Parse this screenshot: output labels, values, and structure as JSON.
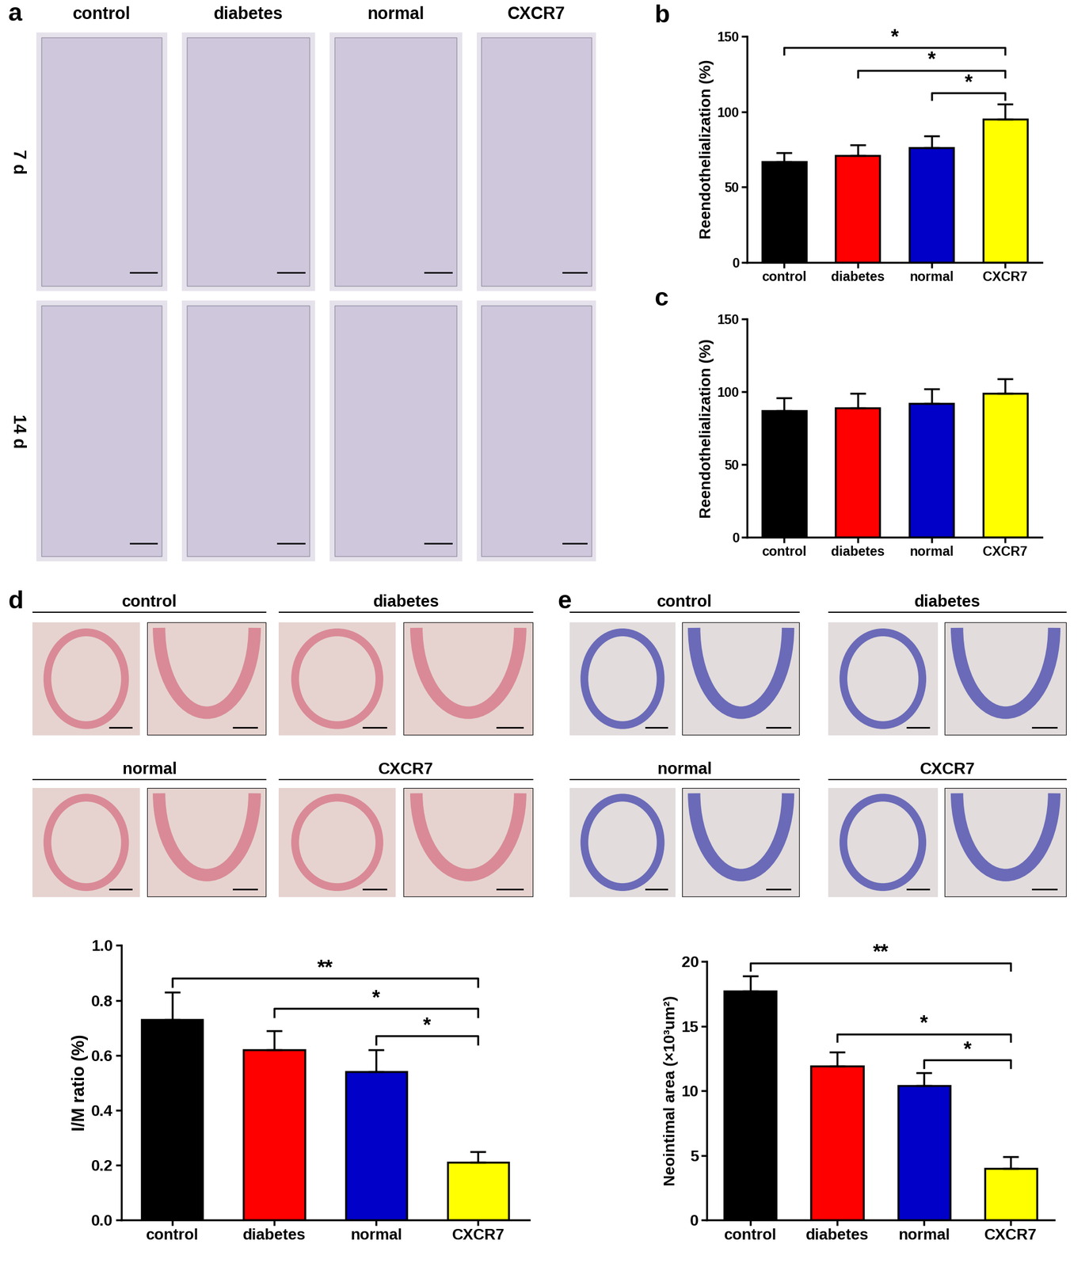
{
  "image_panels": [
    {
      "panel": "a",
      "columns": [
        "control",
        "diabetes",
        "normal",
        "CXCR7"
      ],
      "rows": [
        "7 d",
        "14 d"
      ]
    },
    {
      "panel": "d",
      "groups": [
        "control",
        "diabetes",
        "normal",
        "CXCR7"
      ]
    },
    {
      "panel": "e",
      "groups": [
        "control",
        "diabetes",
        "normal",
        "CXCR7"
      ]
    }
  ],
  "chart_data": [
    {
      "panel": "b",
      "type": "bar",
      "ylabel": "Reendothelialization (%)",
      "categories": [
        "control",
        "diabetes",
        "normal",
        "CXCR7"
      ],
      "values": [
        67,
        71,
        76,
        95
      ],
      "errors": [
        6,
        7,
        8,
        10
      ],
      "colors": [
        "#000000",
        "#ff0000",
        "#0000c8",
        "#ffff00"
      ],
      "ylim": [
        0,
        150
      ],
      "yticks": [
        0,
        50,
        100,
        150
      ],
      "annotations": [
        {
          "between": [
            "control",
            "CXCR7"
          ],
          "text": "*"
        },
        {
          "between": [
            "diabetes",
            "CXCR7"
          ],
          "text": "*"
        },
        {
          "between": [
            "normal",
            "CXCR7"
          ],
          "text": "*"
        }
      ]
    },
    {
      "panel": "c",
      "type": "bar",
      "ylabel": "Reendothelialization (%)",
      "categories": [
        "control",
        "diabetes",
        "normal",
        "CXCR7"
      ],
      "values": [
        87,
        89,
        92,
        99
      ],
      "errors": [
        9,
        10,
        10,
        10
      ],
      "colors": [
        "#000000",
        "#ff0000",
        "#0000c8",
        "#ffff00"
      ],
      "ylim": [
        0,
        150
      ],
      "yticks": [
        0,
        50,
        100,
        150
      ],
      "annotations": []
    },
    {
      "panel": "d",
      "type": "bar",
      "ylabel": "I/M ratio (%)",
      "categories": [
        "control",
        "diabetes",
        "normal",
        "CXCR7"
      ],
      "values": [
        0.73,
        0.62,
        0.54,
        0.21
      ],
      "errors": [
        0.1,
        0.07,
        0.08,
        0.04
      ],
      "colors": [
        "#000000",
        "#ff0000",
        "#0000c8",
        "#ffff00"
      ],
      "ylim": [
        0,
        1.0
      ],
      "yticks": [
        0.0,
        0.2,
        0.4,
        0.6,
        0.8,
        1.0
      ],
      "annotations": [
        {
          "between": [
            "control",
            "CXCR7"
          ],
          "text": "**"
        },
        {
          "between": [
            "diabetes",
            "CXCR7"
          ],
          "text": "*"
        },
        {
          "between": [
            "normal",
            "CXCR7"
          ],
          "text": "*"
        }
      ]
    },
    {
      "panel": "e",
      "type": "bar",
      "ylabel": "Neointimal area (×10³um²)",
      "categories": [
        "control",
        "diabetes",
        "normal",
        "CXCR7"
      ],
      "values": [
        17.7,
        11.9,
        10.4,
        4.0
      ],
      "errors": [
        1.2,
        1.1,
        1.0,
        0.9
      ],
      "colors": [
        "#000000",
        "#ff0000",
        "#0000c8",
        "#ffff00"
      ],
      "ylim": [
        0,
        20
      ],
      "yticks": [
        0,
        5,
        10,
        15,
        20
      ],
      "annotations": [
        {
          "between": [
            "control",
            "CXCR7"
          ],
          "text": "**"
        },
        {
          "between": [
            "diabetes",
            "CXCR7"
          ],
          "text": "*"
        },
        {
          "between": [
            "normal",
            "CXCR7"
          ],
          "text": "*"
        }
      ]
    }
  ]
}
